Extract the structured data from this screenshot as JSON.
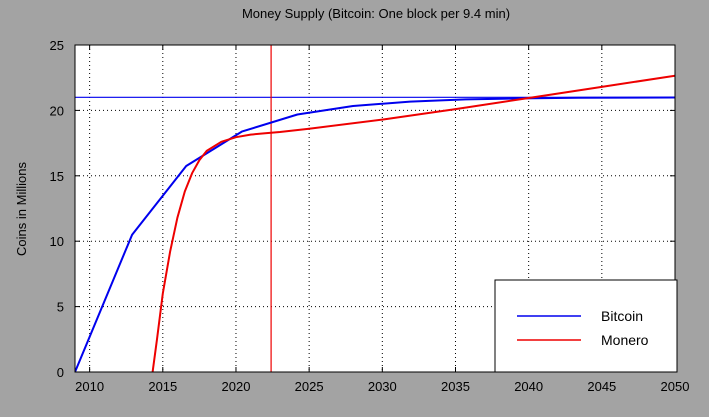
{
  "chart_data": {
    "type": "line",
    "title": "Money Supply (Bitcoin: One block per 9.4 min)",
    "xlabel": "",
    "ylabel": "Coins in Millions",
    "xlim": [
      2009,
      2050
    ],
    "ylim": [
      0,
      25
    ],
    "x_ticks": [
      2010,
      2015,
      2020,
      2025,
      2030,
      2035,
      2040,
      2045,
      2050
    ],
    "y_ticks": [
      0,
      5,
      10,
      15,
      20,
      25
    ],
    "grid": true,
    "legend_position": "bottom-right",
    "reference_lines": {
      "horizontal": {
        "y": 21,
        "color": "#0000ee"
      },
      "vertical": {
        "x": 2022.4,
        "color": "#ee0000"
      }
    },
    "series": [
      {
        "name": "Bitcoin",
        "color": "#0000ee",
        "x": [
          2009.0,
          2012.9,
          2016.6,
          2020.4,
          2024.2,
          2028.0,
          2031.9,
          2035.7,
          2039.5,
          2043.4,
          2047.2,
          2050.0
        ],
        "y": [
          0.0,
          10.5,
          15.75,
          18.38,
          19.69,
          20.34,
          20.67,
          20.84,
          20.92,
          20.96,
          20.98,
          20.99
        ]
      },
      {
        "name": "Monero",
        "color": "#ee0000",
        "x": [
          2014.3,
          2014.6,
          2015.0,
          2015.5,
          2016.0,
          2016.5,
          2017.0,
          2017.5,
          2018.0,
          2019.0,
          2020.0,
          2021.0,
          2022.0,
          2023.0,
          2025.0,
          2030.0,
          2035.0,
          2040.0,
          2045.0,
          2050.0
        ],
        "y": [
          0.0,
          2.5,
          6.0,
          9.2,
          11.8,
          13.8,
          15.2,
          16.2,
          16.9,
          17.6,
          17.95,
          18.15,
          18.25,
          18.35,
          18.6,
          19.3,
          20.1,
          20.95,
          21.8,
          22.65
        ]
      }
    ]
  }
}
